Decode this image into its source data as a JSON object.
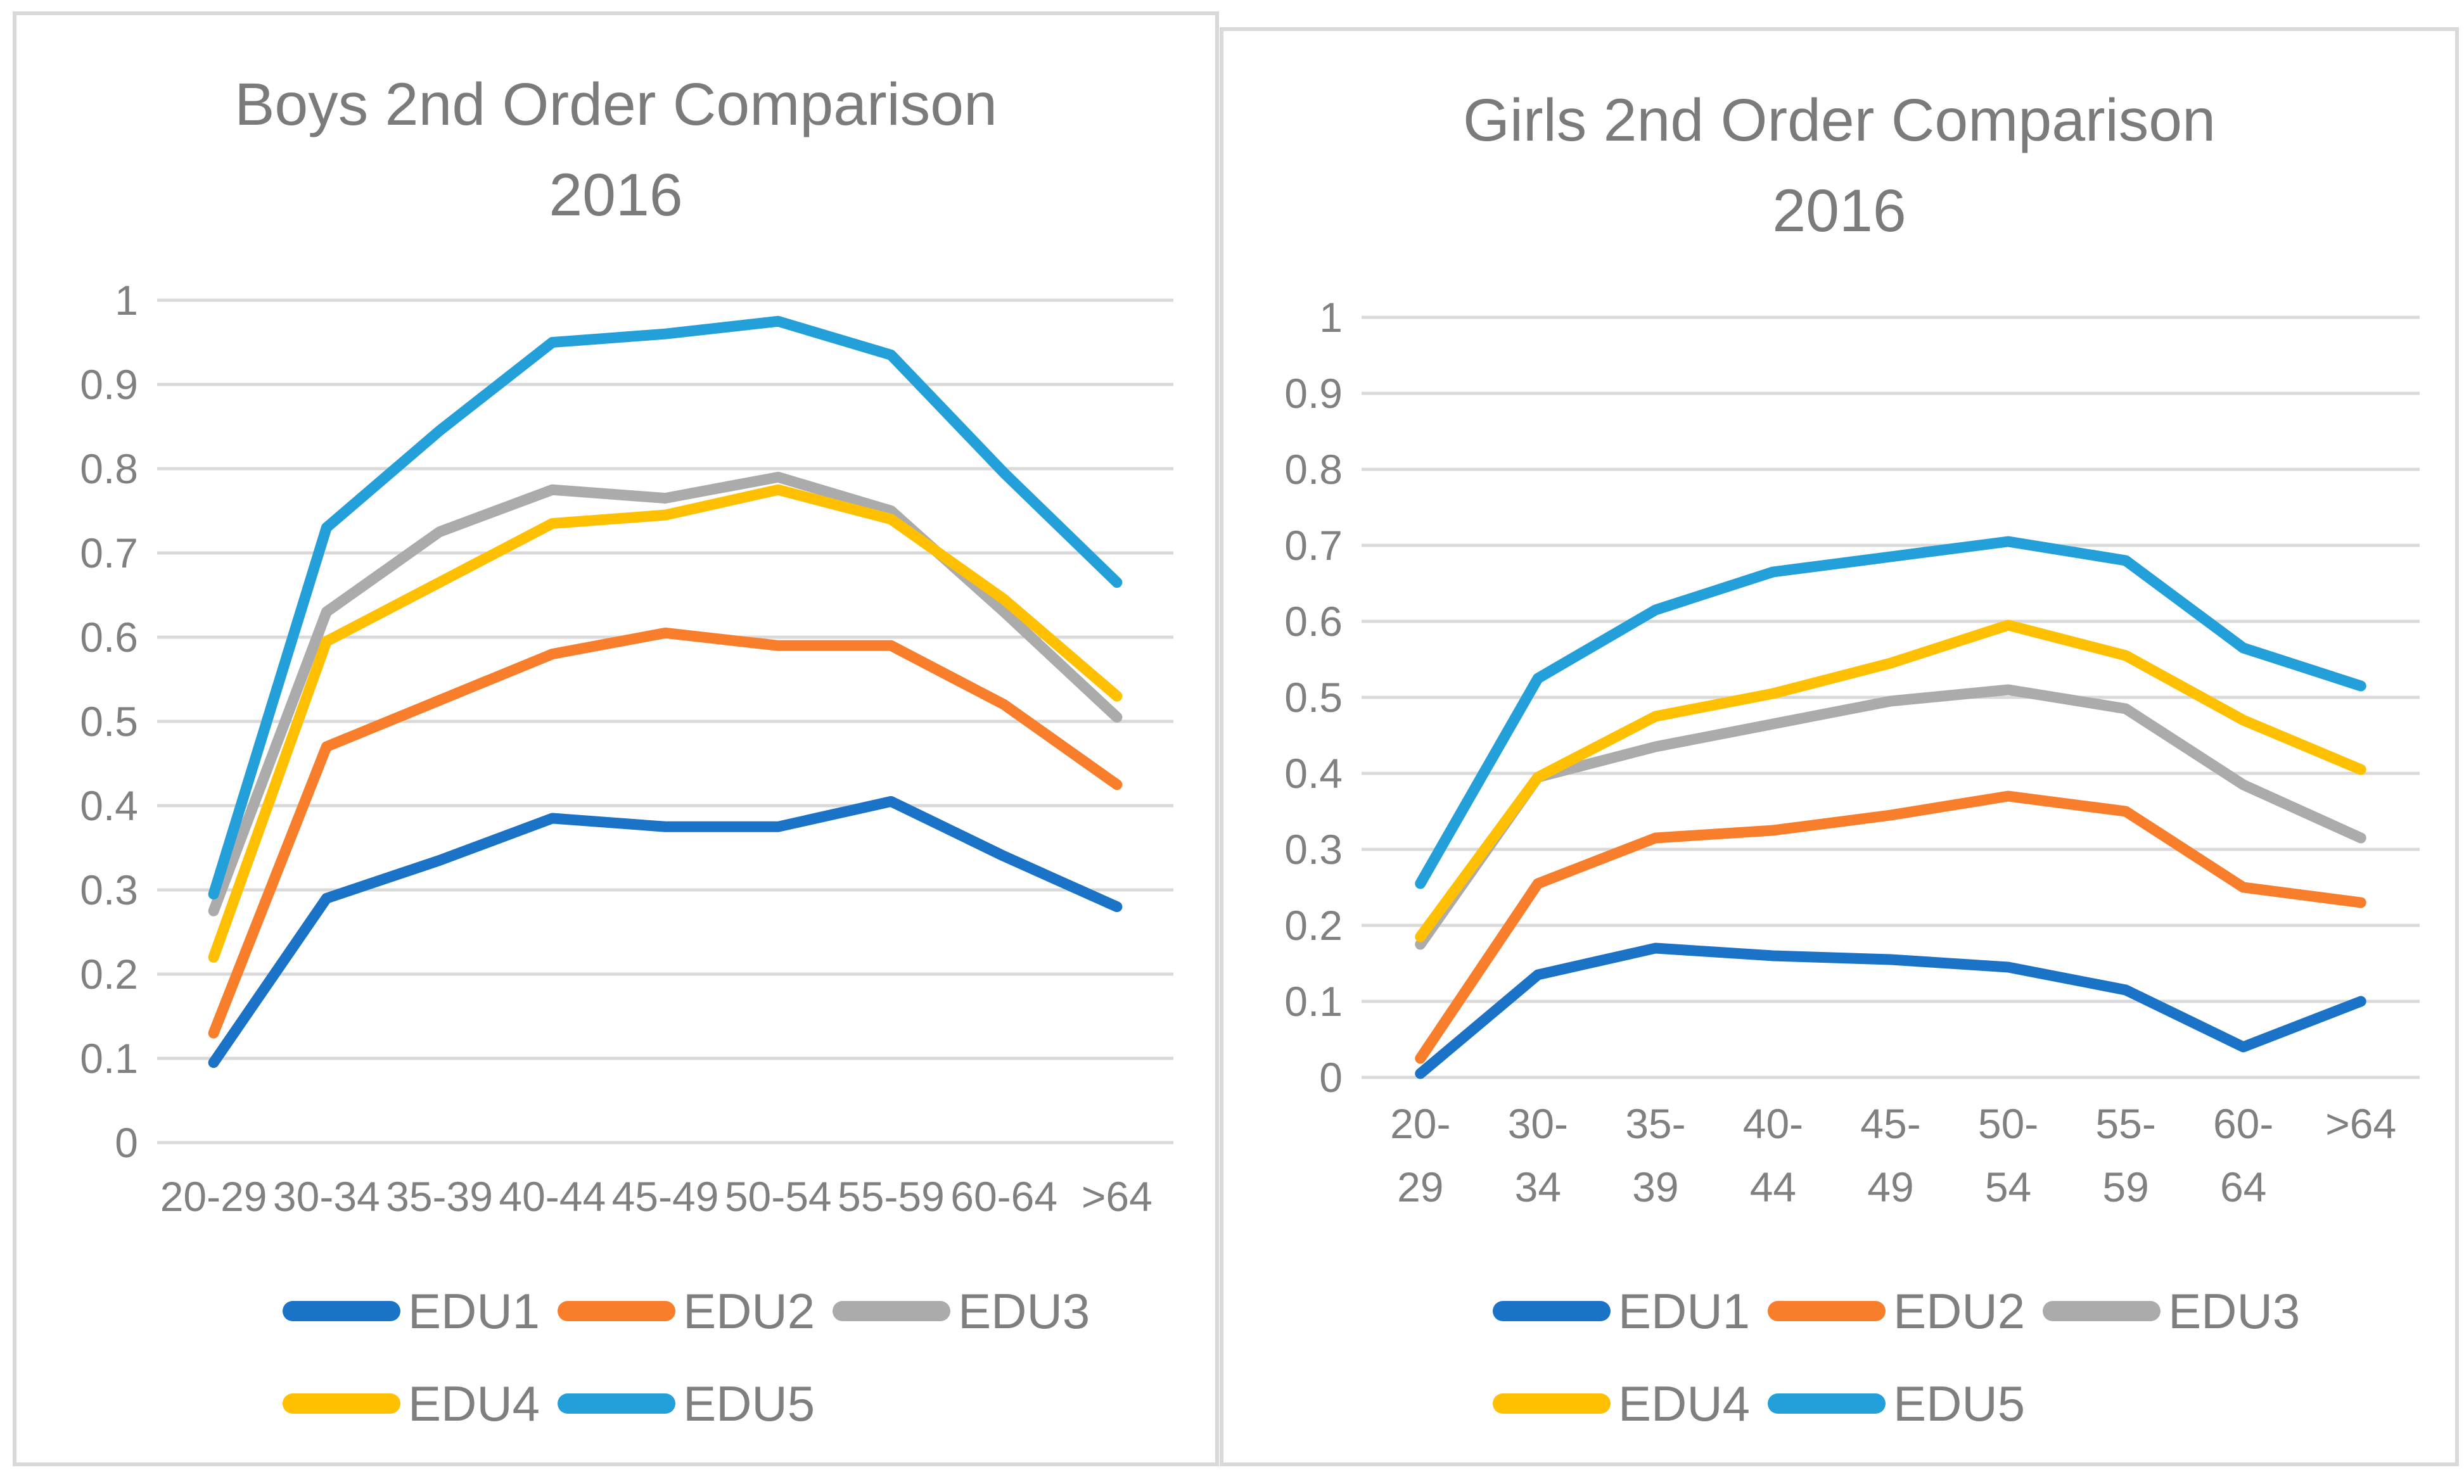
{
  "page": {
    "background": "#ffffff",
    "panel_border_color": "#d9d9d9",
    "gridline_color": "#d9d9d9",
    "title_color": "#7b7b7b",
    "axis_label_color": "#808080",
    "legend_label_color": "#7f7f7f"
  },
  "chart_data": [
    {
      "type": "line",
      "title": "Boys 2nd Order Comparison 2016",
      "title_line1": "Boys 2nd Order Comparison",
      "title_line2": "2016",
      "xlabel": "",
      "ylabel": "",
      "ylim": [
        0,
        1
      ],
      "ytick_labels": [
        "0",
        "0.1",
        "0.2",
        "0.3",
        "0.4",
        "0.5",
        "0.6",
        "0.7",
        "0.8",
        "0.9",
        "1"
      ],
      "grid": true,
      "legend_position": "bottom",
      "categories": [
        "20-29",
        "30-34",
        "35-39",
        "40-44",
        "45-49",
        "50-54",
        "55-59",
        "60-64",
        ">64"
      ],
      "categories_display": [
        [
          "20-29"
        ],
        [
          "30-34"
        ],
        [
          "35-39"
        ],
        [
          "40-44"
        ],
        [
          "45-49"
        ],
        [
          "50-54"
        ],
        [
          "55-59"
        ],
        [
          "60-64"
        ],
        [
          ">64"
        ]
      ],
      "series": [
        {
          "name": "EDU1",
          "color": "#1b73c8",
          "values": [
            0.095,
            0.29,
            0.335,
            0.385,
            0.375,
            0.375,
            0.405,
            0.34,
            0.28
          ]
        },
        {
          "name": "EDU2",
          "color": "#f87e2b",
          "values": [
            0.13,
            0.47,
            0.525,
            0.58,
            0.605,
            0.59,
            0.59,
            0.52,
            0.425
          ]
        },
        {
          "name": "EDU3",
          "color": "#ababab",
          "values": [
            0.275,
            0.63,
            0.725,
            0.775,
            0.765,
            0.79,
            0.75,
            0.63,
            0.505
          ]
        },
        {
          "name": "EDU4",
          "color": "#ffc002",
          "values": [
            0.22,
            0.595,
            0.665,
            0.735,
            0.745,
            0.775,
            0.74,
            0.645,
            0.53
          ]
        },
        {
          "name": "EDU5",
          "color": "#23a0da",
          "values": [
            0.295,
            0.73,
            0.845,
            0.95,
            0.96,
            0.975,
            0.935,
            0.795,
            0.665
          ]
        }
      ]
    },
    {
      "type": "line",
      "title": "Girls 2nd Order Comparison 2016",
      "title_line1": "Girls 2nd Order Comparison",
      "title_line2": "2016",
      "xlabel": "",
      "ylabel": "",
      "ylim": [
        0,
        1
      ],
      "ytick_labels": [
        "0",
        "0.1",
        "0.2",
        "0.3",
        "0.4",
        "0.5",
        "0.6",
        "0.7",
        "0.8",
        "0.9",
        "1"
      ],
      "grid": true,
      "legend_position": "bottom",
      "categories": [
        "20-29",
        "30-34",
        "35-39",
        "40-44",
        "45-49",
        "50-54",
        "55-59",
        "60-64",
        ">64"
      ],
      "categories_display": [
        [
          "20-",
          "29"
        ],
        [
          "30-",
          "34"
        ],
        [
          "35-",
          "39"
        ],
        [
          "40-",
          "44"
        ],
        [
          "45-",
          "49"
        ],
        [
          "50-",
          "54"
        ],
        [
          "55-",
          "59"
        ],
        [
          "60-",
          "64"
        ],
        [
          ">64"
        ]
      ],
      "series": [
        {
          "name": "EDU1",
          "color": "#1b73c8",
          "values": [
            0.005,
            0.135,
            0.17,
            0.16,
            0.155,
            0.145,
            0.115,
            0.04,
            0.1
          ]
        },
        {
          "name": "EDU2",
          "color": "#f87e2b",
          "values": [
            0.025,
            0.255,
            0.315,
            0.325,
            0.345,
            0.37,
            0.35,
            0.25,
            0.23
          ]
        },
        {
          "name": "EDU3",
          "color": "#ababab",
          "values": [
            0.175,
            0.395,
            0.435,
            0.465,
            0.495,
            0.51,
            0.485,
            0.385,
            0.315
          ]
        },
        {
          "name": "EDU4",
          "color": "#ffc002",
          "values": [
            0.185,
            0.395,
            0.475,
            0.505,
            0.545,
            0.595,
            0.555,
            0.47,
            0.405
          ]
        },
        {
          "name": "EDU5",
          "color": "#23a0da",
          "values": [
            0.255,
            0.525,
            0.615,
            0.665,
            0.685,
            0.705,
            0.68,
            0.565,
            0.515
          ]
        }
      ]
    }
  ]
}
